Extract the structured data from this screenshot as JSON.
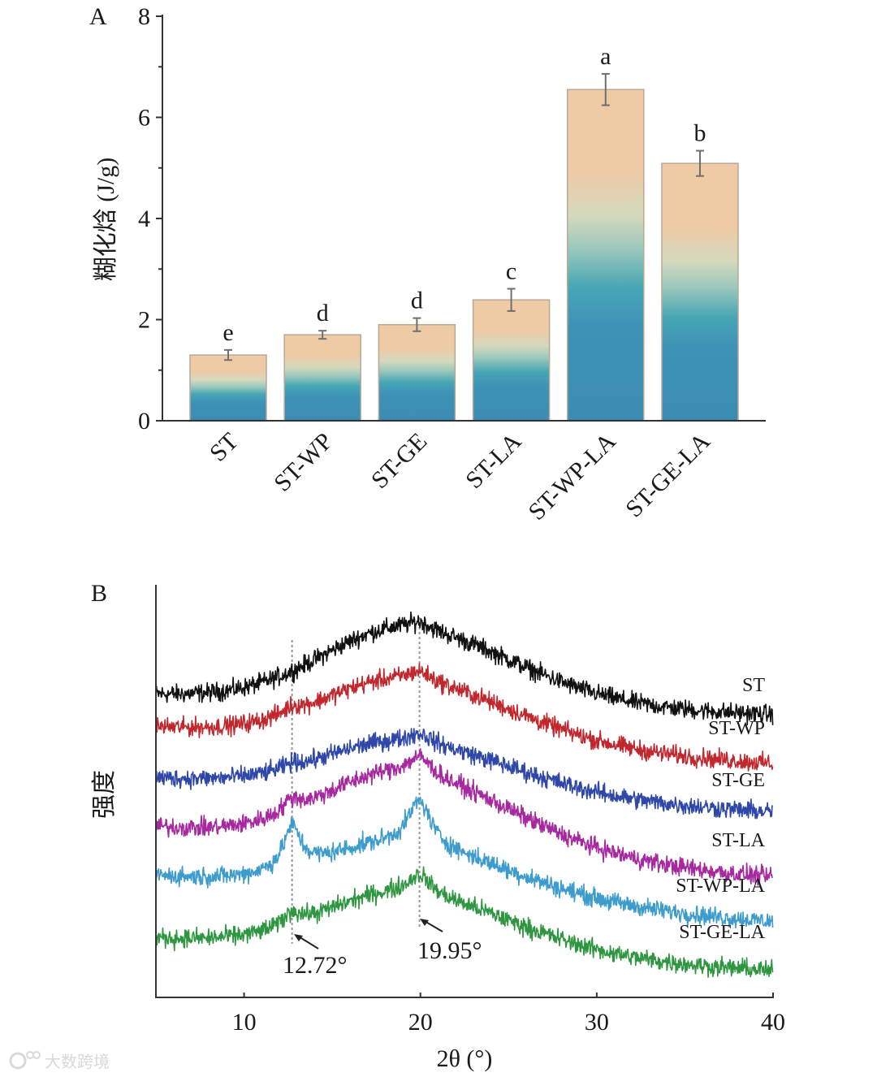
{
  "chart_data": [
    {
      "type": "bar",
      "panel_label": "A",
      "ylabel": "糊化焓 (J/g)",
      "xlabel": "",
      "ylim": [
        0,
        8
      ],
      "yticks": [
        "0",
        "2",
        "4",
        "6",
        "8"
      ],
      "categories": [
        "ST",
        "ST-WP",
        "ST-GE",
        "ST-LA",
        "ST-WP-LA",
        "ST-GE-LA"
      ],
      "values": [
        1.3,
        1.7,
        1.9,
        2.39,
        6.55,
        5.09
      ],
      "errors": [
        0.1,
        0.08,
        0.13,
        0.22,
        0.31,
        0.25
      ],
      "significance": [
        "e",
        "d",
        "d",
        "c",
        "a",
        "b"
      ],
      "colors": {
        "bottom": "#3b8cb4",
        "mid": "#45a6b4",
        "pale": "#c9dcc3",
        "top": "#eecaa5",
        "error": "#6f6f6f"
      }
    },
    {
      "type": "line",
      "panel_label": "B",
      "xlabel": "2θ (°)",
      "ylabel": "强度",
      "xlim": [
        5,
        40
      ],
      "xticks": [
        "10",
        "20",
        "30",
        "40"
      ],
      "intensity_units": "arbitrary (stacked offsets)",
      "annotations": [
        "12.72°",
        "19.95°"
      ],
      "reference_lines": [
        12.72,
        19.95
      ],
      "series": [
        {
          "name": "ST",
          "color": "#111111",
          "baseline_start": 73.7,
          "baseline_end": 68.8,
          "broad_amp": 18,
          "peak_12_72_amp": 0,
          "peak_19_95_amp": 2
        },
        {
          "name": "ST-WP",
          "color": "#c0282e",
          "baseline_start": 65.8,
          "baseline_end": 56.9,
          "broad_amp": 15,
          "peak_12_72_amp": 1.5,
          "peak_19_95_amp": 2.5
        },
        {
          "name": "ST-GE",
          "color": "#2e47a8",
          "baseline_start": 53.4,
          "baseline_end": 45.1,
          "broad_amp": 12,
          "peak_12_72_amp": 1,
          "peak_19_95_amp": 2.5
        },
        {
          "name": "ST-LA",
          "color": "#a6299f",
          "baseline_start": 41.5,
          "baseline_end": 29.2,
          "broad_amp": 18,
          "peak_12_72_amp": 3,
          "peak_19_95_amp": 4.5
        },
        {
          "name": "ST-WP-LA",
          "color": "#3d9ccc",
          "baseline_start": 29.6,
          "baseline_end": 18.4,
          "broad_amp": 12,
          "peak_12_72_amp": 10,
          "peak_19_95_amp": 11
        },
        {
          "name": "ST-GE-LA",
          "color": "#2e9640",
          "baseline_start": 14.4,
          "baseline_end": 6.5,
          "broad_amp": 14,
          "peak_12_72_amp": 3,
          "peak_19_95_amp": 5
        }
      ]
    }
  ],
  "watermark": "大数跨境"
}
